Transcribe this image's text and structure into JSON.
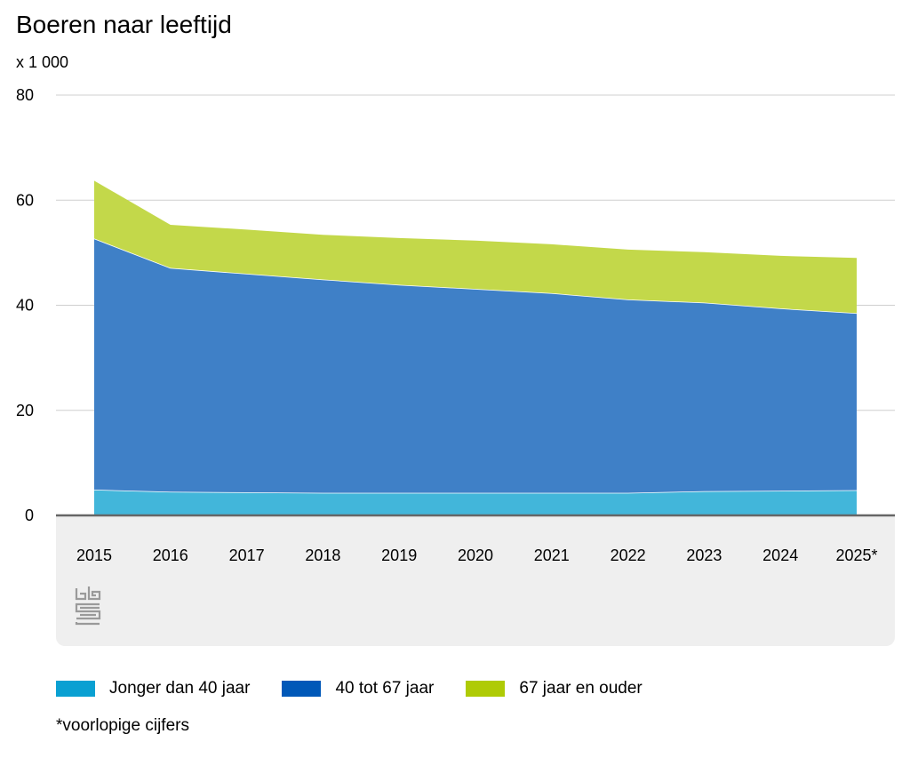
{
  "chart_data": {
    "type": "area",
    "stacked": true,
    "title": "Boeren naar leeftijd",
    "ylabel": "x 1 000",
    "xlabel": "",
    "ylim": [
      0,
      80
    ],
    "yticks": [
      0,
      20,
      40,
      60,
      80
    ],
    "categories": [
      "2015",
      "2016",
      "2017",
      "2018",
      "2019",
      "2020",
      "2021",
      "2022",
      "2023",
      "2024",
      "2025*"
    ],
    "series": [
      {
        "name": "Jonger dan 40 jaar",
        "color": "#42b6da",
        "legend_color": "#0aa0d2",
        "values": [
          4.9,
          4.5,
          4.4,
          4.3,
          4.3,
          4.3,
          4.3,
          4.3,
          4.6,
          4.7,
          4.8
        ]
      },
      {
        "name": "40 tot 67 jaar",
        "color": "#3f80c7",
        "legend_color": "#0058b8",
        "values": [
          47.8,
          42.6,
          41.6,
          40.6,
          39.6,
          38.8,
          38.0,
          36.8,
          35.9,
          34.7,
          33.7
        ]
      },
      {
        "name": "67 jaar en ouder",
        "color": "#c3d84a",
        "legend_color": "#afcb05",
        "values": [
          11.0,
          8.2,
          8.4,
          8.5,
          8.9,
          9.2,
          9.3,
          9.5,
          9.6,
          10.0,
          10.5
        ]
      }
    ],
    "grid": true,
    "legend_position": "bottom-left",
    "footnote": "*voorlopige cijfers"
  },
  "source_logo": "cbs"
}
